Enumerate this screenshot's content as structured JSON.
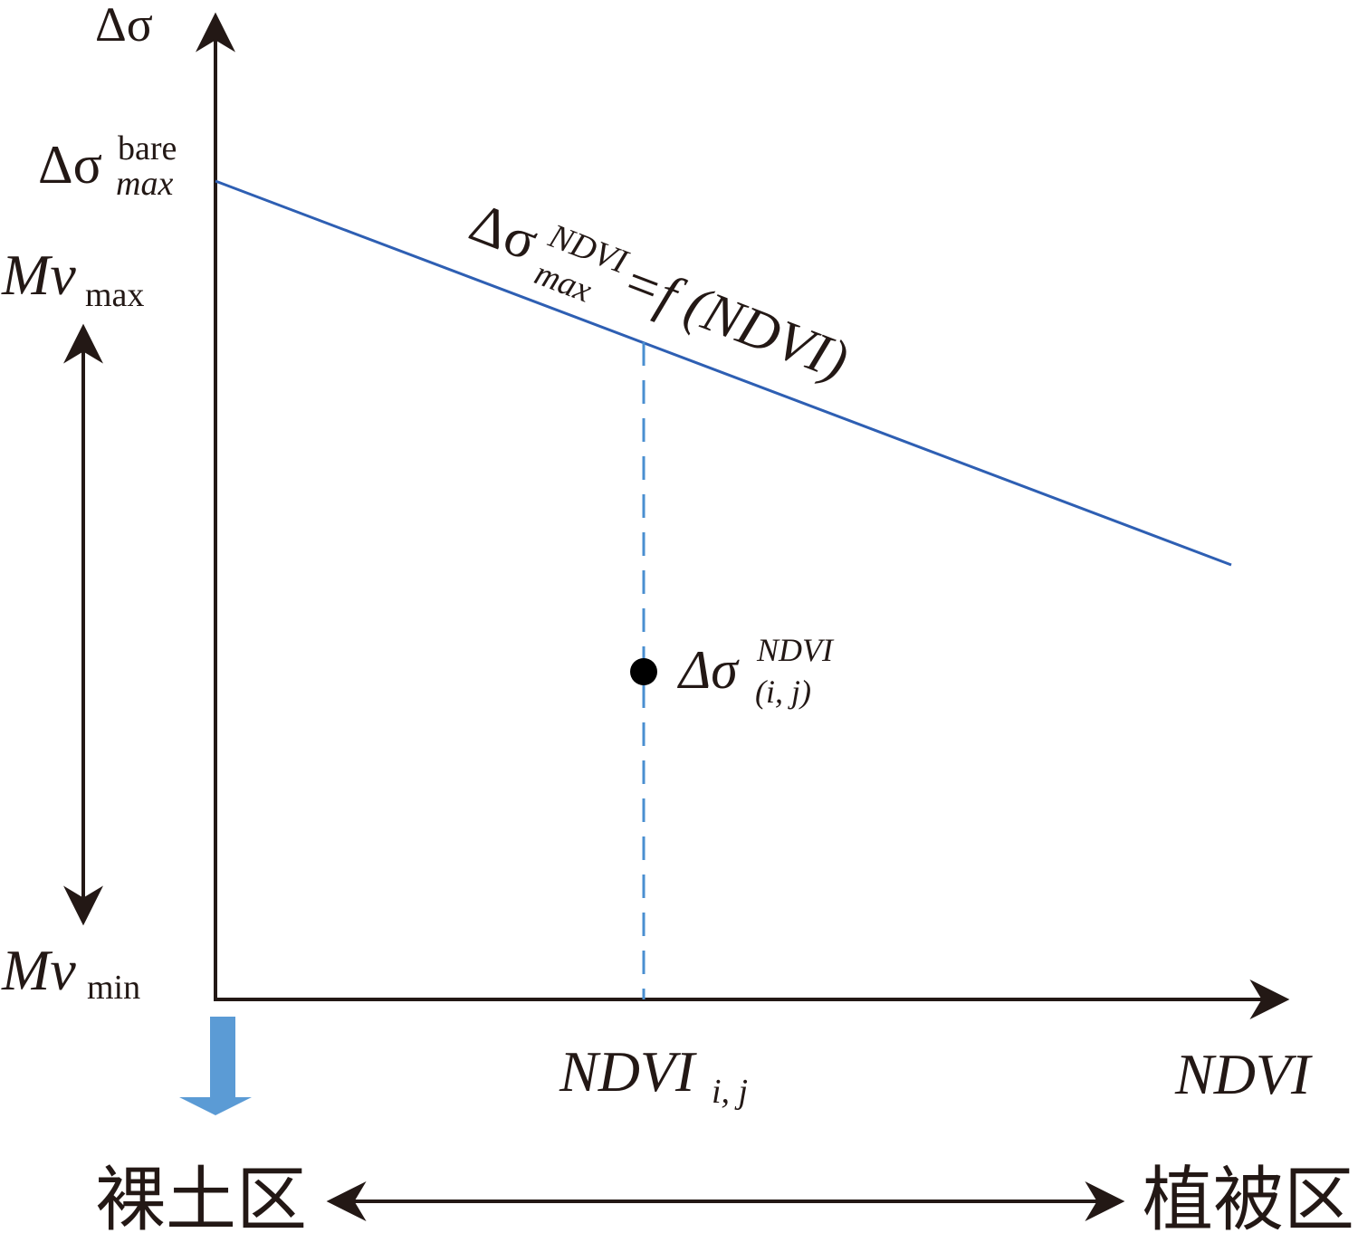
{
  "axes": {
    "y_label": "Δσ",
    "x_label": "NDVI"
  },
  "labels": {
    "bare_max": {
      "base": "Δσ",
      "sup": "bare",
      "sub": "max"
    },
    "mv_max": {
      "base": "Mv",
      "sub": "max"
    },
    "mv_min": {
      "base": "Mv",
      "sub": "min"
    },
    "line_label": {
      "base": "Δσ",
      "sup": "NDVI",
      "sub": "max",
      "rest": "=f (NDVI)"
    },
    "point_label": {
      "base": "Δσ",
      "sup": "NDVI",
      "sub": "(i, j)"
    },
    "ndvi_ij": {
      "base": "NDVI",
      "sub": "i, j"
    }
  },
  "zones": {
    "left": "裸土区",
    "right": "植被区"
  }
}
